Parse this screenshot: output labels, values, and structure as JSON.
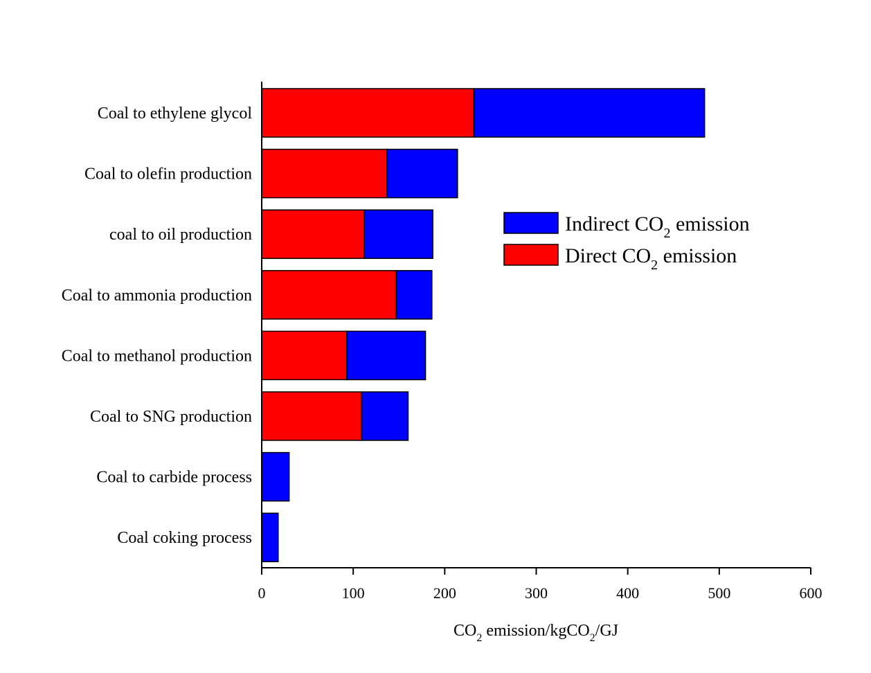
{
  "chart_data": {
    "type": "bar",
    "orientation": "horizontal",
    "stacked": true,
    "categories": [
      "Coal to ethylene glycol",
      "Coal to olefin production",
      "coal to oil production",
      "Coal to ammonia production",
      "Coal to methanol production",
      "Coal to SNG production",
      "Coal to carbide process",
      "Coal coking process"
    ],
    "series": [
      {
        "name": "Direct CO2 emission",
        "color": "#ff0000",
        "values": [
          232,
          137,
          112,
          147,
          93,
          109,
          0,
          0
        ]
      },
      {
        "name": "Indirect CO2 emission",
        "color": "#0000ff",
        "values": [
          252,
          77,
          75,
          39,
          86,
          51,
          30,
          18
        ]
      }
    ],
    "xlim": [
      0,
      600
    ],
    "xticks": [
      0,
      100,
      200,
      300,
      400,
      500,
      600
    ],
    "xlabel": "CO2 emission/kgCO2/GJ",
    "xlabel_parts": {
      "a": "CO",
      "a_sub": "2",
      "b": " emission/kgCO",
      "b_sub": "2",
      "c": "/GJ"
    },
    "legend": {
      "position": "upper-right",
      "entries": [
        {
          "prefix": "Indirect CO",
          "sub": "2",
          "suffix": " emission",
          "color": "#0000ff"
        },
        {
          "prefix": "Direct CO",
          "sub": "2",
          "suffix": " emission",
          "color": "#ff0000"
        }
      ]
    },
    "grid": false
  }
}
